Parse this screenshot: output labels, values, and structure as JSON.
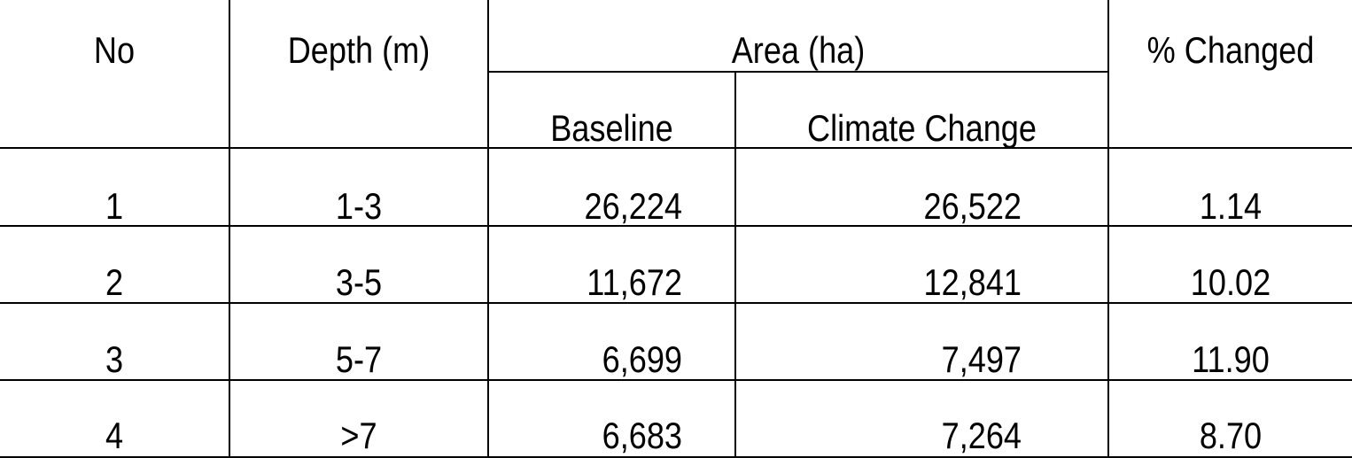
{
  "header": {
    "no": "No",
    "depth": "Depth (m)",
    "area": "Area (ha)",
    "baseline": "Baseline",
    "climate_change": "Climate Change",
    "pct_changed": "% Changed"
  },
  "rows": [
    {
      "no": "1",
      "depth": "1-3",
      "baseline": "26,224",
      "climate_change": "26,522",
      "pct_changed": "1.14"
    },
    {
      "no": "2",
      "depth": "3-5",
      "baseline": "11,672",
      "climate_change": "12,841",
      "pct_changed": "10.02"
    },
    {
      "no": "3",
      "depth": "5-7",
      "baseline": "6,699",
      "climate_change": "7,497",
      "pct_changed": "11.90"
    },
    {
      "no": "4",
      "depth": ">7",
      "baseline": "6,683",
      "climate_change": "7,264",
      "pct_changed": "8.70"
    }
  ]
}
